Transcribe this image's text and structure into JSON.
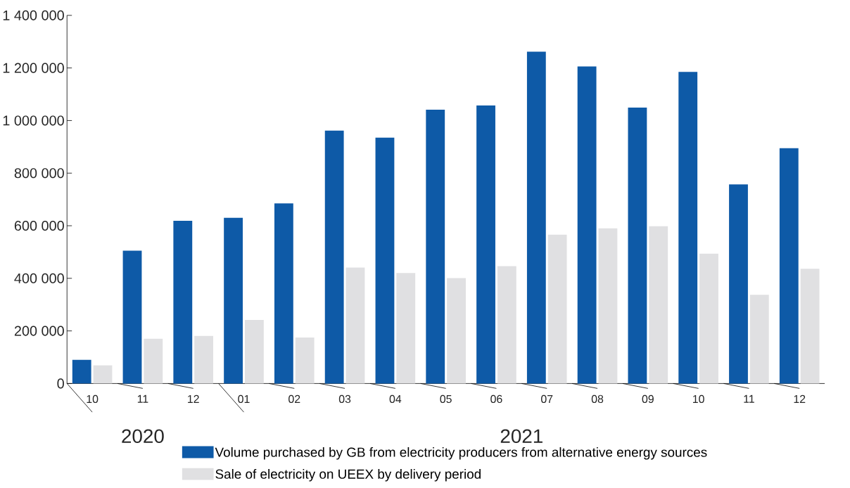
{
  "chart_data": {
    "type": "bar",
    "categories": [
      "10",
      "11",
      "12",
      "01",
      "02",
      "03",
      "04",
      "05",
      "06",
      "07",
      "08",
      "09",
      "10",
      "11",
      "12"
    ],
    "series": [
      {
        "name": "Volume purchased by GB from electricity producers from alternative energy sources",
        "color": "#0e5aa7",
        "values": [
          90000,
          505000,
          619000,
          630000,
          685000,
          962000,
          935000,
          1041000,
          1057000,
          1262000,
          1206000,
          1049000,
          1185000,
          757000,
          895000
        ]
      },
      {
        "name": "Sale of electricity on UEEX by delivery period",
        "color": "#e0e0e2",
        "values": [
          69000,
          170000,
          181000,
          242000,
          175000,
          441000,
          420000,
          401000,
          446000,
          566000,
          590000,
          598000,
          494000,
          337000,
          436000
        ]
      }
    ],
    "ylim": [
      0,
      1400000
    ],
    "yticks": [
      {
        "value": 0,
        "label": "0"
      },
      {
        "value": 200000,
        "label": "200 000"
      },
      {
        "value": 400000,
        "label": "400 000"
      },
      {
        "value": 600000,
        "label": "600 000"
      },
      {
        "value": 800000,
        "label": "800 000"
      },
      {
        "value": 1000000,
        "label": "1 000 000"
      },
      {
        "value": 1200000,
        "label": "1 200 000"
      },
      {
        "value": 1400000,
        "label": "1 400 000"
      }
    ],
    "annotations": [
      "2020",
      "2021"
    ],
    "legend": "bottom",
    "grid": false
  }
}
